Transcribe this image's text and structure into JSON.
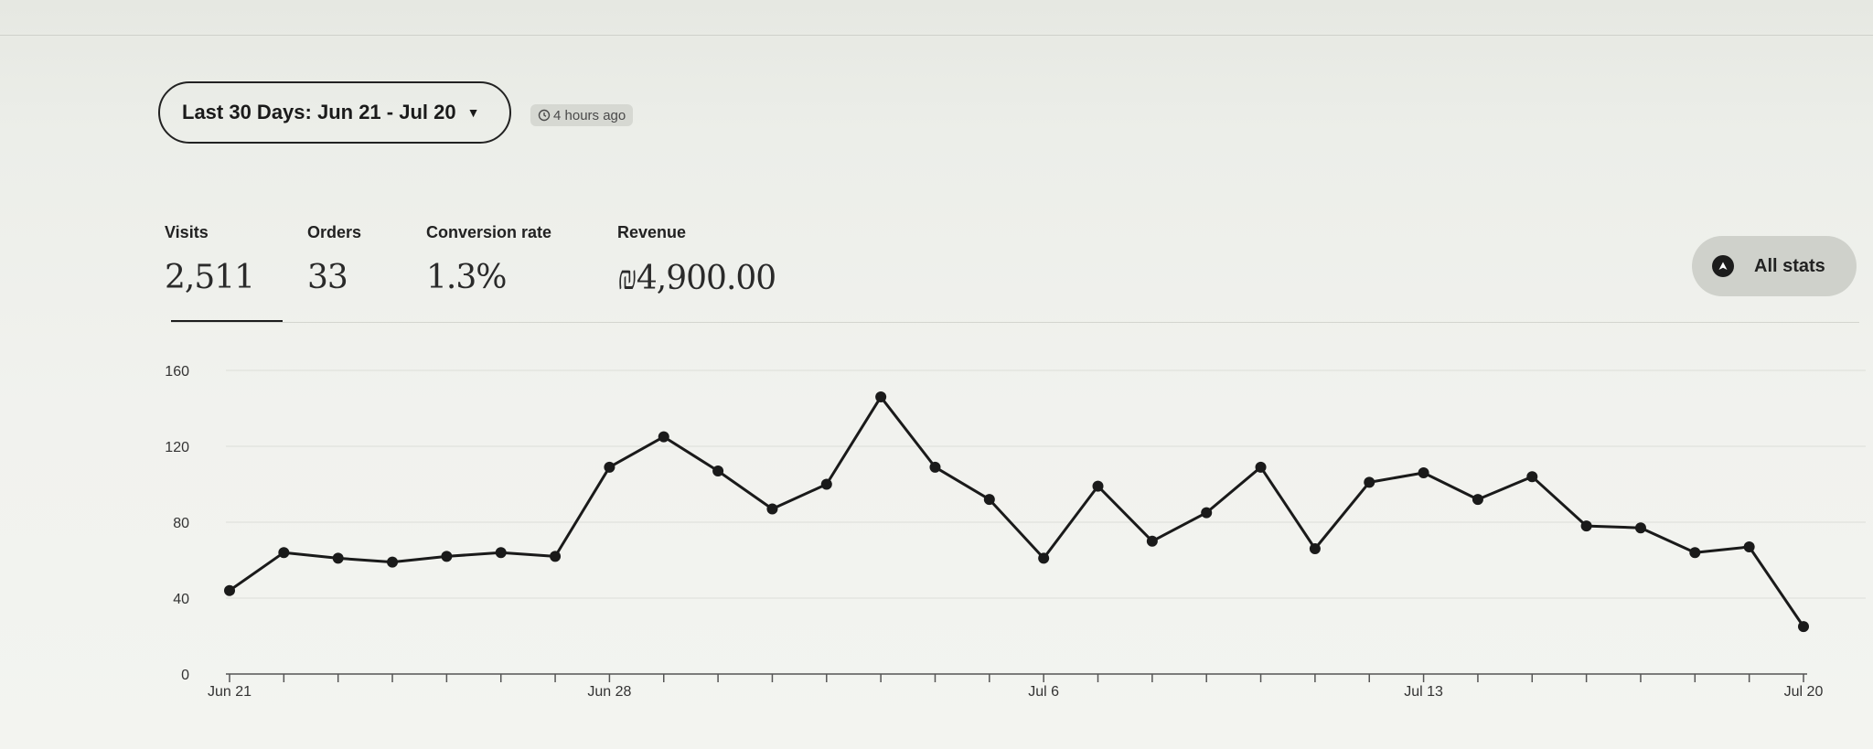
{
  "date_range": {
    "label": "Last 30 Days: Jun 21 - Jul 20",
    "updated": "4 hours ago"
  },
  "stats": [
    {
      "label": "Visits",
      "value": "2,511"
    },
    {
      "label": "Orders",
      "value": "33"
    },
    {
      "label": "Conversion rate",
      "value": "1.3%"
    },
    {
      "label": "Revenue",
      "value": "₪4,900.00"
    }
  ],
  "all_stats_label": "All stats",
  "icons": {
    "caret": "caret-down-icon",
    "clock": "clock-icon",
    "all_stats": "triangle-arrow-icon"
  },
  "chart_data": {
    "type": "line",
    "x": [
      "Jun 21",
      "Jun 22",
      "Jun 23",
      "Jun 24",
      "Jun 25",
      "Jun 26",
      "Jun 27",
      "Jun 28",
      "Jun 29",
      "Jun 30",
      "Jul 1",
      "Jul 2",
      "Jul 3",
      "Jul 4",
      "Jul 5",
      "Jul 6",
      "Jul 7",
      "Jul 8",
      "Jul 9",
      "Jul 10",
      "Jul 11",
      "Jul 12",
      "Jul 13",
      "Jul 14",
      "Jul 15",
      "Jul 16",
      "Jul 17",
      "Jul 18",
      "Jul 19",
      "Jul 20"
    ],
    "values": [
      44,
      64,
      61,
      59,
      62,
      64,
      62,
      109,
      125,
      107,
      87,
      100,
      146,
      109,
      92,
      61,
      99,
      70,
      85,
      109,
      66,
      101,
      106,
      92,
      104,
      78,
      77,
      64,
      67,
      25
    ],
    "xticks": [
      "Jun 21",
      "Jun 28",
      "Jul 6",
      "Jul 13",
      "Jul 20"
    ],
    "yticks": [
      0,
      40,
      80,
      120,
      160
    ],
    "ylim": [
      0,
      160
    ],
    "grid": true,
    "line_color": "#1a1a1a"
  }
}
